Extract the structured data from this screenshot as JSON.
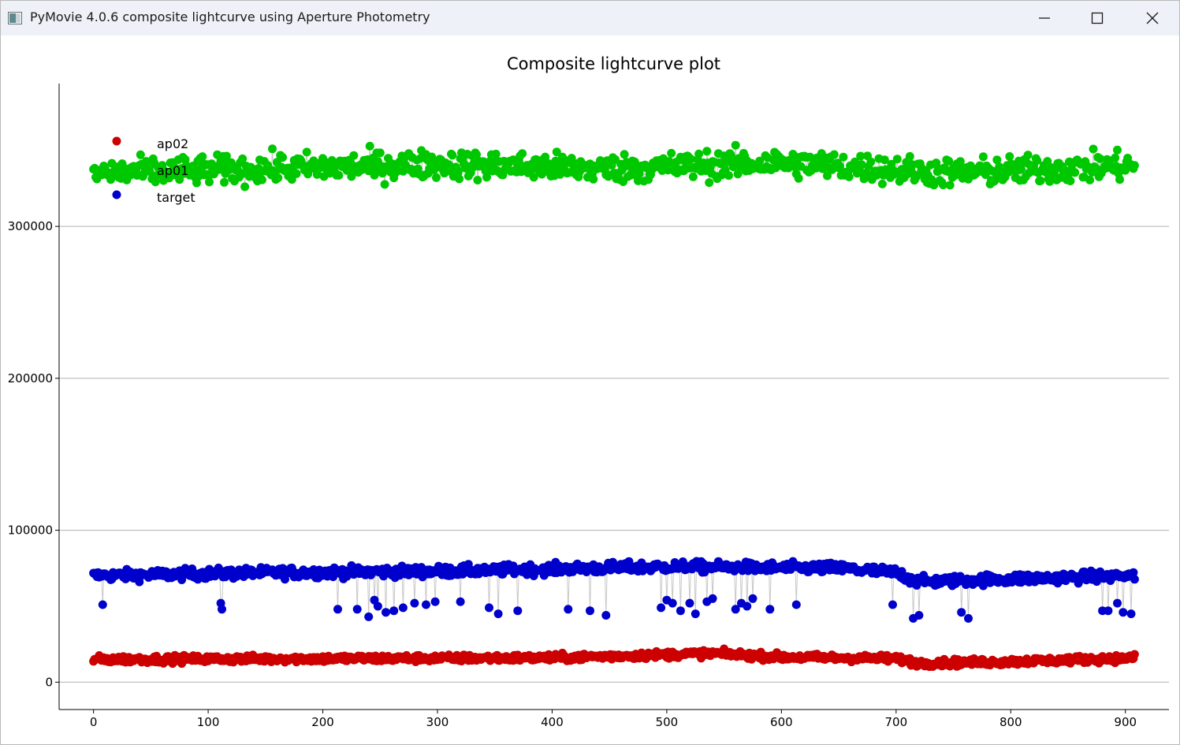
{
  "window": {
    "title": "PyMovie 4.0.6 composite lightcurve using Aperture Photometry",
    "icons": [
      "app-icon",
      "minimize-icon",
      "maximize-icon",
      "close-icon"
    ]
  },
  "chart_data": {
    "type": "scatter",
    "title": "Composite lightcurve plot",
    "xlabel": "",
    "ylabel": "",
    "xlim": [
      -30,
      938
    ],
    "ylim": [
      -18000,
      394000
    ],
    "x_ticks": [
      0,
      100,
      200,
      300,
      400,
      500,
      600,
      700,
      800,
      900
    ],
    "x_tick_labels": [
      "0",
      "100",
      "200",
      "300",
      "400",
      "500",
      "600",
      "700",
      "800",
      "900"
    ],
    "y_ticks": [
      0,
      100000,
      200000,
      300000
    ],
    "y_tick_labels": [
      "0",
      "100000",
      "200000",
      "300000"
    ],
    "grid": "horizontal",
    "legend_position": "top-left",
    "x_range": [
      0,
      908
    ],
    "series": [
      {
        "name": "ap02",
        "color": "#cc0000",
        "base_level": [
          [
            0,
            15000
          ],
          [
            200,
            15500
          ],
          [
            400,
            16000
          ],
          [
            540,
            19000
          ],
          [
            600,
            16500
          ],
          [
            700,
            15500
          ],
          [
            720,
            12500
          ],
          [
            800,
            13500
          ],
          [
            908,
            16000
          ]
        ],
        "spread": 3000,
        "dips": []
      },
      {
        "name": "ap01",
        "color": "#00c800",
        "base_level": [
          [
            0,
            335000
          ],
          [
            300,
            341000
          ],
          [
            450,
            338000
          ],
          [
            600,
            342000
          ],
          [
            750,
            335000
          ],
          [
            908,
            340000
          ]
        ],
        "spread": 12000,
        "dips": []
      },
      {
        "name": "target",
        "color": "#0000cc",
        "base_level": [
          [
            0,
            70000
          ],
          [
            150,
            72000
          ],
          [
            300,
            73000
          ],
          [
            500,
            76000
          ],
          [
            650,
            75000
          ],
          [
            700,
            72000
          ],
          [
            720,
            66000
          ],
          [
            800,
            68000
          ],
          [
            908,
            70000
          ]
        ],
        "spread": 4500,
        "dips": [
          [
            8,
            51000
          ],
          [
            111,
            52000
          ],
          [
            112,
            48000
          ],
          [
            213,
            48000
          ],
          [
            230,
            48000
          ],
          [
            240,
            43000
          ],
          [
            245,
            54000
          ],
          [
            248,
            50000
          ],
          [
            255,
            46000
          ],
          [
            262,
            47000
          ],
          [
            270,
            49000
          ],
          [
            280,
            52000
          ],
          [
            290,
            51000
          ],
          [
            298,
            53000
          ],
          [
            320,
            53000
          ],
          [
            345,
            49000
          ],
          [
            353,
            45000
          ],
          [
            370,
            47000
          ],
          [
            414,
            48000
          ],
          [
            433,
            47000
          ],
          [
            447,
            44000
          ],
          [
            495,
            49000
          ],
          [
            500,
            54000
          ],
          [
            505,
            52000
          ],
          [
            512,
            47000
          ],
          [
            520,
            52000
          ],
          [
            525,
            45000
          ],
          [
            535,
            53000
          ],
          [
            540,
            55000
          ],
          [
            560,
            48000
          ],
          [
            565,
            52000
          ],
          [
            570,
            50000
          ],
          [
            575,
            55000
          ],
          [
            590,
            48000
          ],
          [
            613,
            51000
          ],
          [
            697,
            51000
          ],
          [
            715,
            42000
          ],
          [
            720,
            44000
          ],
          [
            757,
            46000
          ],
          [
            763,
            42000
          ],
          [
            880,
            47000
          ],
          [
            885,
            47000
          ],
          [
            893,
            52000
          ],
          [
            898,
            46000
          ],
          [
            905,
            45000
          ]
        ]
      }
    ]
  }
}
